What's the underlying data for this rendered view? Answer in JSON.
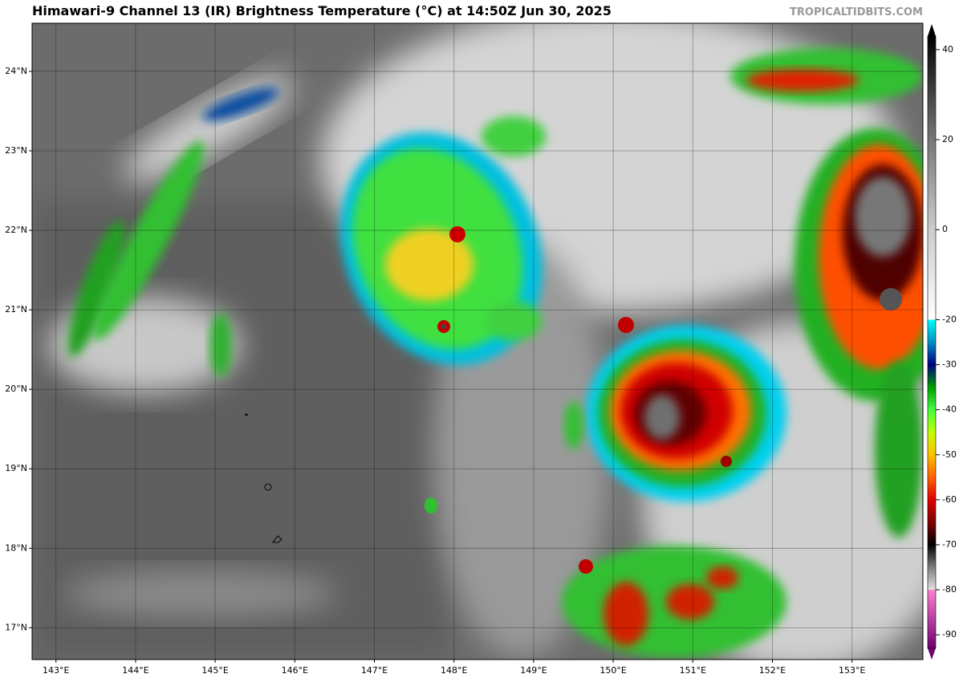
{
  "header": {
    "title": "Himawari-9 Channel 13 (IR) Brightness Temperature (°C) at 14:50Z Jun 30, 2025",
    "source": "TROPICALTIDBITS.COM"
  },
  "map": {
    "lon_range": [
      142.7,
      153.89
    ],
    "lat_range": [
      16.6,
      24.605
    ],
    "lat_ticks": [
      {
        "value": 24,
        "label": "24°N"
      },
      {
        "value": 23,
        "label": "23°N"
      },
      {
        "value": 22,
        "label": "22°N"
      },
      {
        "value": 21,
        "label": "21°N"
      },
      {
        "value": 20,
        "label": "20°N"
      },
      {
        "value": 19,
        "label": "19°N"
      },
      {
        "value": 18,
        "label": "18°N"
      },
      {
        "value": 17,
        "label": "17°N"
      }
    ],
    "lon_ticks": [
      {
        "value": 143,
        "label": "143°E"
      },
      {
        "value": 144,
        "label": "144°E"
      },
      {
        "value": 145,
        "label": "145°E"
      },
      {
        "value": 146,
        "label": "146°E"
      },
      {
        "value": 147,
        "label": "147°E"
      },
      {
        "value": 148,
        "label": "148°E"
      },
      {
        "value": 149,
        "label": "149°E"
      },
      {
        "value": 150,
        "label": "150°E"
      },
      {
        "value": 151,
        "label": "151°E"
      },
      {
        "value": 152,
        "label": "152°E"
      },
      {
        "value": 153,
        "label": "153°E"
      }
    ]
  },
  "colorbar": {
    "range": [
      -93,
      43
    ],
    "ticks": [
      40,
      20,
      0,
      -20,
      -30,
      -40,
      -50,
      -60,
      -70,
      -80,
      -90
    ]
  }
}
